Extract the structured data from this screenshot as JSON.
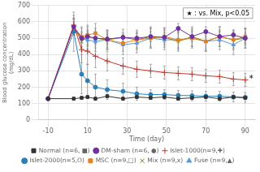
{
  "chart_data": {
    "type": "line",
    "xlabel": "Time (day)",
    "ylabel": "Blood glucose concentration\n(mg/dL)",
    "x": [
      -10,
      3,
      7,
      10,
      14,
      20,
      28,
      35,
      42,
      49,
      56,
      63,
      70,
      77,
      84,
      90
    ],
    "xlim": [
      -15,
      95
    ],
    "xticks": [
      -10,
      10,
      30,
      50,
      70,
      90
    ],
    "ylim": [
      0,
      700
    ],
    "yticks": [
      0,
      100,
      200,
      300,
      400,
      500,
      600,
      700
    ],
    "grid": true,
    "legend": "bottom",
    "series": [
      {
        "name": "Normal (n=6, ■)",
        "color": "#333333",
        "marker": "square",
        "values": [
          130,
          130,
          135,
          140,
          130,
          145,
          130,
          140,
          135,
          140,
          130,
          135,
          140,
          130,
          140,
          135
        ],
        "errors": [
          10,
          10,
          10,
          10,
          10,
          10,
          10,
          10,
          10,
          10,
          10,
          10,
          10,
          10,
          10,
          10
        ]
      },
      {
        "name": "DM-sham (n=6, ●)",
        "color": "#7030a0",
        "marker": "circle",
        "values": [
          130,
          570,
          500,
          510,
          500,
          495,
          505,
          500,
          510,
          505,
          560,
          510,
          540,
          510,
          520,
          500
        ],
        "errors": [
          10,
          30,
          30,
          30,
          30,
          30,
          30,
          30,
          30,
          30,
          30,
          30,
          30,
          30,
          30,
          30
        ]
      },
      {
        "name": "Islet-1000(n=9,✚)",
        "color": "#c0392b",
        "marker": "plus",
        "values": [
          130,
          580,
          430,
          420,
          390,
          360,
          330,
          310,
          300,
          290,
          285,
          280,
          270,
          265,
          250,
          245
        ],
        "errors": [
          10,
          60,
          80,
          80,
          70,
          60,
          50,
          50,
          40,
          40,
          40,
          40,
          40,
          40,
          40,
          40
        ]
      },
      {
        "name": "Islet-2000(n=5,O)",
        "color": "#2980b9",
        "marker": "circle",
        "values": [
          130,
          540,
          280,
          240,
          200,
          185,
          175,
          160,
          155,
          155,
          150,
          148,
          145,
          145,
          140,
          138
        ],
        "errors": [
          10,
          120,
          120,
          100,
          80,
          60,
          50,
          40,
          30,
          30,
          30,
          30,
          30,
          30,
          30,
          30
        ]
      },
      {
        "name": "MSC (n=9,□)",
        "color": "#e67e22",
        "marker": "square",
        "values": [
          130,
          570,
          510,
          520,
          530,
          490,
          470,
          490,
          500,
          510,
          490,
          500,
          480,
          510,
          490,
          510
        ],
        "errors": [
          10,
          50,
          60,
          60,
          60,
          50,
          50,
          50,
          60,
          50,
          50,
          50,
          50,
          60,
          50,
          50
        ]
      },
      {
        "name": "Mix (n=9,x)",
        "color": "#808000",
        "marker": "x",
        "values": [
          130,
          570,
          480,
          510,
          500,
          490,
          505,
          490,
          510,
          505,
          480,
          510,
          480,
          510,
          490,
          500
        ],
        "errors": [
          10,
          50,
          60,
          60,
          60,
          60,
          50,
          60,
          60,
          60,
          60,
          60,
          60,
          60,
          60,
          60
        ]
      },
      {
        "name": "Fuse (n=9,▲)",
        "color": "#5b9bd5",
        "marker": "triangle",
        "values": [
          130,
          570,
          500,
          490,
          480,
          490,
          460,
          470,
          500,
          490,
          490,
          500,
          480,
          490,
          460,
          500
        ],
        "errors": [
          10,
          50,
          60,
          60,
          60,
          60,
          60,
          60,
          60,
          60,
          60,
          60,
          60,
          60,
          60,
          60
        ]
      }
    ],
    "annotations": [
      {
        "text": "*",
        "x": 92,
        "y": 248
      }
    ],
    "note": "★ : vs. Mix, p<0.05"
  }
}
